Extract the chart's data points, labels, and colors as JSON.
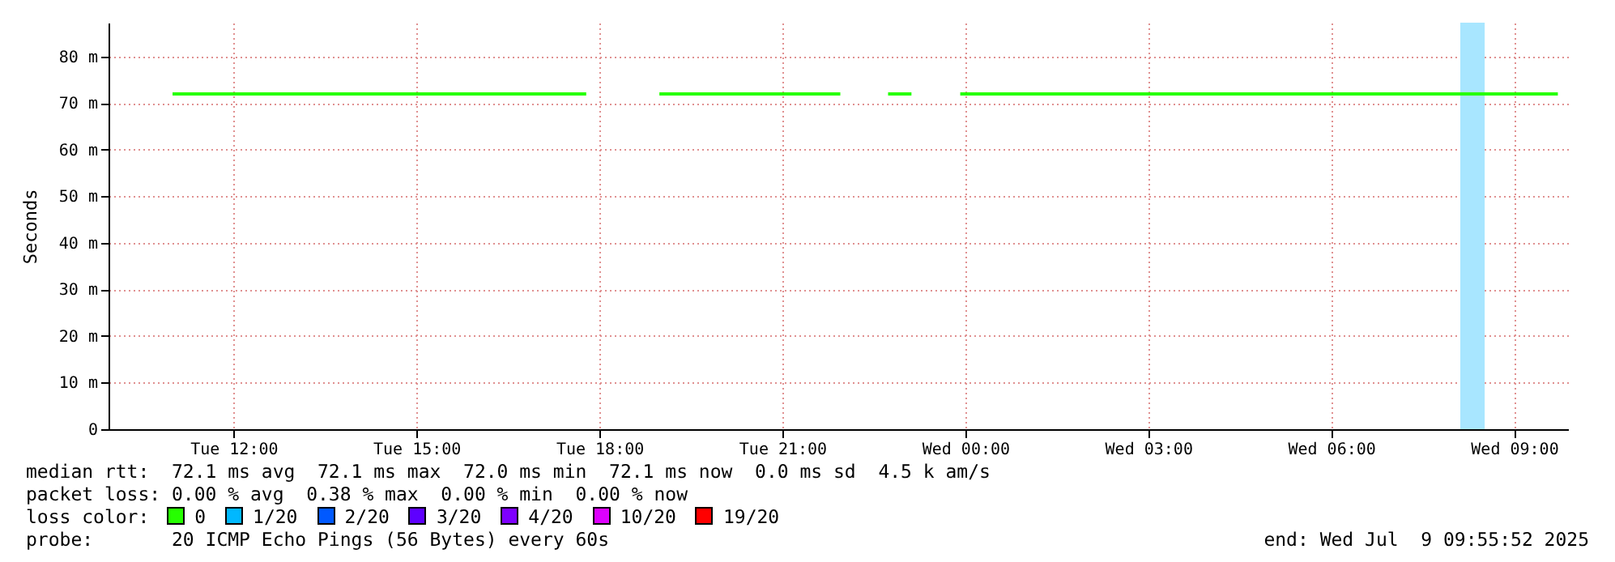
{
  "chart_data": {
    "type": "line",
    "ylabel": "Seconds",
    "legend_title": "loss color:",
    "legend": "bottom",
    "grid": true,
    "line_style": "solid",
    "marker": "none",
    "x": [
      "2025-07-08T11:00",
      "2025-07-08T17:47",
      "2025-07-08T18:20",
      "2025-07-08T18:59",
      "2025-07-08T21:57",
      "2025-07-08T22:20",
      "2025-07-08T22:44",
      "2025-07-08T23:07",
      "2025-07-08T23:30",
      "2025-07-08T23:55",
      "2025-07-09T09:43"
    ],
    "series": [
      {
        "name": "0",
        "color": "#26ff00",
        "values": [
          72,
          72,
          null,
          72,
          72,
          null,
          72,
          72,
          null,
          72,
          72
        ]
      },
      {
        "name": "1/20",
        "color": "#00b8ff",
        "values": [
          null,
          null,
          null,
          null,
          null,
          null,
          null,
          null,
          null,
          null,
          null
        ]
      },
      {
        "name": "2/20",
        "color": "#0059ff",
        "values": [
          null,
          null,
          null,
          null,
          null,
          null,
          null,
          null,
          null,
          null,
          null
        ]
      },
      {
        "name": "3/20",
        "color": "#5e00ff",
        "values": [
          null,
          null,
          null,
          null,
          null,
          null,
          null,
          null,
          null,
          null,
          null
        ]
      },
      {
        "name": "4/20",
        "color": "#7e00ff",
        "values": [
          null,
          null,
          null,
          null,
          null,
          null,
          null,
          null,
          null,
          null,
          null
        ]
      },
      {
        "name": "10/20",
        "color": "#dd00ff",
        "values": [
          null,
          null,
          null,
          null,
          null,
          null,
          null,
          null,
          null,
          null,
          null
        ]
      },
      {
        "name": "19/20",
        "color": "#ff0000",
        "values": [
          null,
          null,
          null,
          null,
          null,
          null,
          null,
          null,
          null,
          null,
          null
        ]
      }
    ],
    "xlim": [
      "2025-07-08T09:57",
      "2025-07-09T09:53"
    ],
    "xticks": [
      {
        "value": "2025-07-08T12:00",
        "label": "Tue 12:00"
      },
      {
        "value": "2025-07-08T15:00",
        "label": "Tue 15:00"
      },
      {
        "value": "2025-07-08T18:00",
        "label": "Tue 18:00"
      },
      {
        "value": "2025-07-08T21:00",
        "label": "Tue 21:00"
      },
      {
        "value": "2025-07-09T00:00",
        "label": "Wed 00:00"
      },
      {
        "value": "2025-07-09T03:00",
        "label": "Wed 03:00"
      },
      {
        "value": "2025-07-09T06:00",
        "label": "Wed 06:00"
      },
      {
        "value": "2025-07-09T09:00",
        "label": "Wed 09:00"
      }
    ],
    "ylim": [
      0,
      87.3
    ],
    "yticks": [
      0,
      {
        "value": 10,
        "label": "10 m"
      },
      {
        "value": 20,
        "label": "20 m"
      },
      {
        "value": 30,
        "label": "30 m"
      },
      {
        "value": 40,
        "label": "40 m"
      },
      {
        "value": 50,
        "label": "50 m"
      },
      {
        "value": 60,
        "label": "60 m"
      },
      {
        "value": 70,
        "label": "70 m"
      },
      {
        "value": 80,
        "label": "80 m"
      }
    ],
    "bands": [
      {
        "axis": "x",
        "from": "2025-07-09T08:07",
        "to": "2025-07-09T08:31",
        "color": "#a8e6ff"
      }
    ],
    "annotations": [
      "median rtt:  72.1 ms avg  72.1 ms max  72.0 ms min  72.1 ms now  0.0 ms sd  4.5 k am/s",
      "packet loss: 0.00 % avg  0.38 % max  0.00 % min  0.00 % now",
      "probe:       20 ICMP Echo Pings (56 Bytes) every 60s",
      "end: Wed Jul  9 09:55:52 2025"
    ]
  }
}
